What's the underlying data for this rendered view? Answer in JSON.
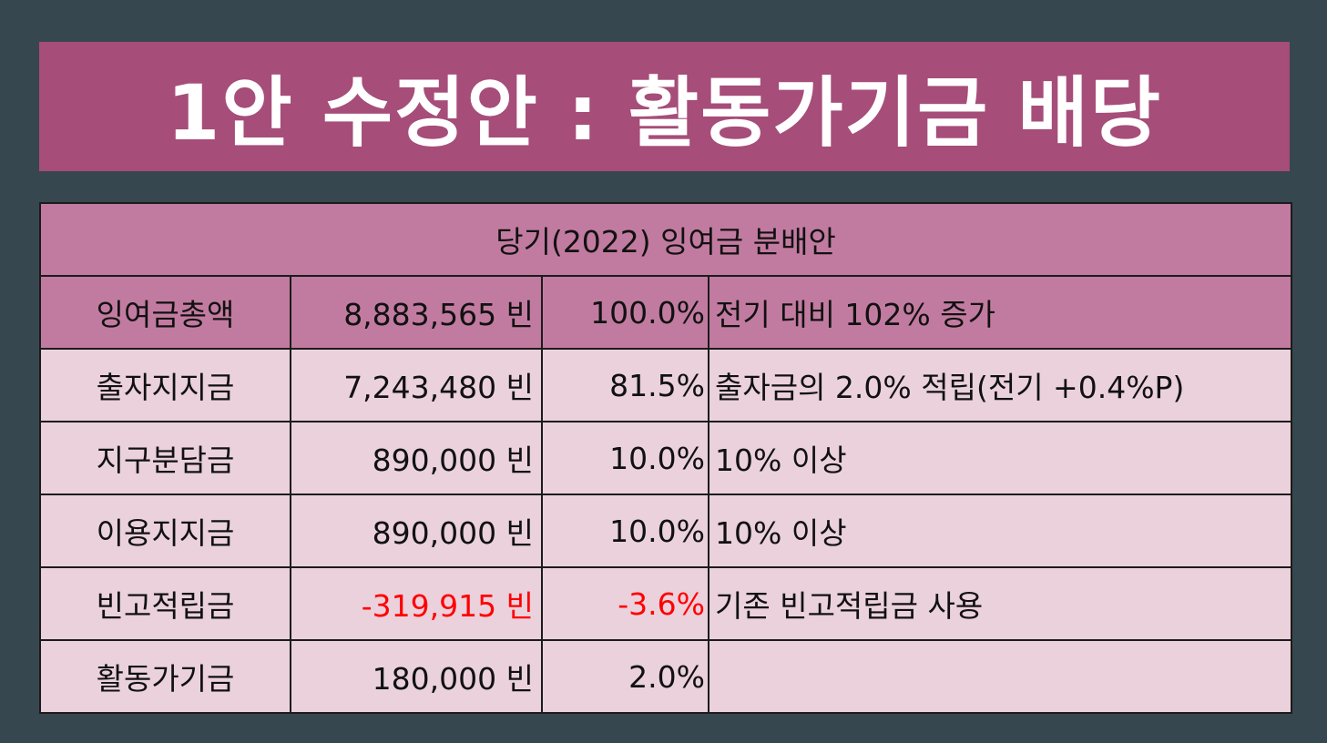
{
  "title": "1안 수정안 : 활동가기금 배당",
  "table": {
    "caption": "당기(2022) 잉여금 분배안",
    "rows": [
      {
        "name": "잉여금총액",
        "amount": "8,883,565 빈",
        "percent": "100.0%",
        "note": "전기 대비 102% 증가",
        "negative": false
      },
      {
        "name": "출자지지금",
        "amount": "7,243,480 빈",
        "percent": "81.5%",
        "note": "출자금의 2.0% 적립(전기 +0.4%P)",
        "negative": false
      },
      {
        "name": "지구분담금",
        "amount": "890,000 빈",
        "percent": "10.0%",
        "note": "10% 이상",
        "negative": false
      },
      {
        "name": "이용지지금",
        "amount": "890,000 빈",
        "percent": "10.0%",
        "note": "10% 이상",
        "negative": false
      },
      {
        "name": "빈고적립금",
        "amount": "-319,915 빈",
        "percent": "-3.6%",
        "note": "기존 빈고적립금 사용",
        "negative": true
      },
      {
        "name": "활동가기금",
        "amount": "180,000 빈",
        "percent": "2.0%",
        "note": "",
        "negative": false
      }
    ]
  },
  "colors": {
    "background": "#37474f",
    "title_background": "#a64d79",
    "header_background": "#c27ba0",
    "row_background": "#ead1dc",
    "negative_text": "#ff0000"
  }
}
